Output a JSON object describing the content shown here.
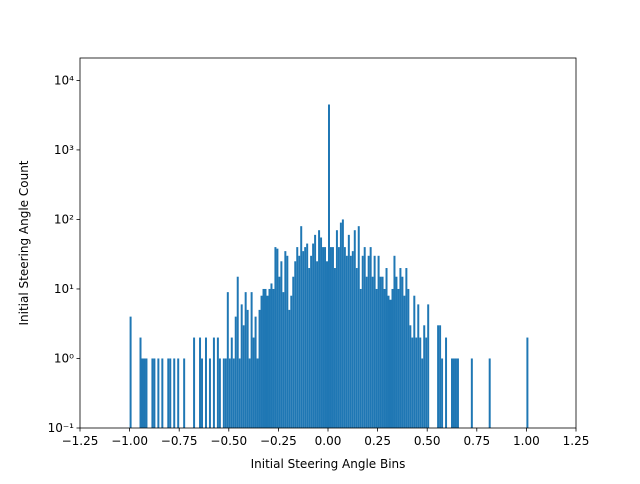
{
  "chart_data": {
    "type": "histogram",
    "x_label": "Initial Steering Angle Bins",
    "y_label": "Initial Steering Angle Count",
    "color": "#1f77b4",
    "log_y": true,
    "bins": [
      -1.0,
      -0.99,
      -0.98,
      -0.97,
      -0.96,
      -0.95,
      -0.94,
      -0.93,
      -0.92,
      -0.91,
      -0.9,
      -0.89,
      -0.88,
      -0.87,
      -0.86,
      -0.85,
      -0.84,
      -0.83,
      -0.82,
      -0.81,
      -0.8,
      -0.79,
      -0.78,
      -0.77,
      -0.76,
      -0.75,
      -0.74,
      -0.73,
      -0.72,
      -0.71,
      -0.7,
      -0.69,
      -0.68,
      -0.67,
      -0.66,
      -0.65,
      -0.64,
      -0.63,
      -0.62,
      -0.61,
      -0.6,
      -0.59,
      -0.58,
      -0.57,
      -0.56,
      -0.55,
      -0.54,
      -0.53,
      -0.52,
      -0.51,
      -0.5,
      -0.49,
      -0.48,
      -0.47,
      -0.46,
      -0.45,
      -0.44,
      -0.43,
      -0.42,
      -0.41,
      -0.4,
      -0.39,
      -0.38,
      -0.37,
      -0.36,
      -0.35,
      -0.34,
      -0.33,
      -0.32,
      -0.31,
      -0.3,
      -0.29,
      -0.28,
      -0.27,
      -0.26,
      -0.25,
      -0.24,
      -0.23,
      -0.22,
      -0.21,
      -0.2,
      -0.19,
      -0.18,
      -0.17,
      -0.16,
      -0.15,
      -0.14,
      -0.13,
      -0.12,
      -0.11,
      -0.1,
      -0.09,
      -0.08,
      -0.07,
      -0.06,
      -0.05,
      -0.04,
      -0.03,
      -0.02,
      -0.01,
      0.0,
      0.01,
      0.02,
      0.03,
      0.04,
      0.05,
      0.06,
      0.07,
      0.08,
      0.09,
      0.1,
      0.11,
      0.12,
      0.13,
      0.14,
      0.15,
      0.16,
      0.17,
      0.18,
      0.19,
      0.2,
      0.21,
      0.22,
      0.23,
      0.24,
      0.25,
      0.26,
      0.27,
      0.28,
      0.29,
      0.3,
      0.31,
      0.32,
      0.33,
      0.34,
      0.35,
      0.36,
      0.37,
      0.38,
      0.39,
      0.4,
      0.41,
      0.42,
      0.43,
      0.44,
      0.45,
      0.46,
      0.47,
      0.48,
      0.49,
      0.5,
      0.51,
      0.52,
      0.53,
      0.54,
      0.55,
      0.56,
      0.57,
      0.58,
      0.59,
      0.6,
      0.61,
      0.62,
      0.63,
      0.64,
      0.65,
      0.66,
      0.67,
      0.68,
      0.69,
      0.7,
      0.71,
      0.72,
      0.73,
      0.74,
      0.75,
      0.76,
      0.77,
      0.78,
      0.79,
      0.8,
      0.81,
      0.82,
      0.83,
      0.84,
      0.85,
      0.86,
      0.87,
      0.88,
      0.89,
      0.9,
      0.91,
      0.92,
      0.93,
      0.94,
      0.95,
      0.96,
      0.97,
      0.98,
      0.99,
      1.0,
      1.01
    ],
    "values": [
      4,
      0,
      0,
      0,
      0,
      2,
      1,
      1,
      1,
      0,
      0,
      1,
      1,
      0,
      1,
      0,
      1,
      0,
      0,
      1,
      1,
      0,
      1,
      0,
      1,
      0,
      0,
      1,
      0,
      0,
      0,
      0,
      2,
      0,
      0,
      2,
      1,
      0,
      2,
      0,
      1,
      0,
      2,
      0,
      2,
      1,
      0,
      1,
      1,
      9,
      1,
      2,
      1,
      4,
      15,
      1,
      6,
      3,
      9,
      5,
      1,
      9,
      2,
      4,
      1,
      5,
      8,
      10,
      10,
      8,
      10,
      12,
      10,
      40,
      38,
      15,
      25,
      9,
      35,
      30,
      5,
      8,
      15,
      25,
      40,
      30,
      80,
      35,
      40,
      45,
      20,
      30,
      45,
      60,
      25,
      70,
      55,
      40,
      40,
      25,
      4500,
      40,
      40,
      20,
      70,
      40,
      90,
      100,
      40,
      30,
      60,
      30,
      35,
      70,
      20,
      80,
      10,
      30,
      40,
      15,
      30,
      40,
      15,
      30,
      10,
      30,
      15,
      15,
      10,
      20,
      8,
      7,
      10,
      30,
      15,
      10,
      20,
      15,
      8,
      20,
      10,
      3,
      2,
      8,
      2,
      6,
      2,
      1,
      3,
      2,
      6,
      0,
      0,
      0,
      0,
      3,
      3,
      1,
      0,
      2,
      0,
      0,
      1,
      1,
      1,
      1,
      0,
      0,
      0,
      0,
      0,
      0,
      1,
      0,
      0,
      0,
      0,
      0,
      0,
      0,
      0,
      1,
      0,
      0,
      0,
      0,
      0,
      0,
      0,
      0,
      0,
      0,
      0,
      0,
      0,
      0,
      0,
      0,
      0,
      0,
      2
    ],
    "xlim": [
      -1.25,
      1.25
    ],
    "xticks": [
      {
        "value": -1.25,
        "label": "−1.25"
      },
      {
        "value": -1.0,
        "label": "−1.00"
      },
      {
        "value": -0.75,
        "label": "−0.75"
      },
      {
        "value": -0.5,
        "label": "−0.50"
      },
      {
        "value": -0.25,
        "label": "−0.25"
      },
      {
        "value": 0,
        "label": "0.00"
      },
      0.25,
      {
        "value": 0.5,
        "label": "0.50"
      },
      0.75,
      {
        "value": 1.0,
        "label": "1.00"
      },
      1.25
    ],
    "ylim": [
      0.1,
      21000
    ],
    "yticks": [
      {
        "value": 0.1,
        "label": "10⁻¹"
      },
      {
        "value": 1,
        "label": "10⁰"
      },
      {
        "value": 10,
        "label": "10¹"
      },
      {
        "value": 100,
        "label": "10²"
      },
      {
        "value": 1000,
        "label": "10³"
      },
      {
        "value": 10000,
        "label": "10⁴"
      }
    ]
  }
}
